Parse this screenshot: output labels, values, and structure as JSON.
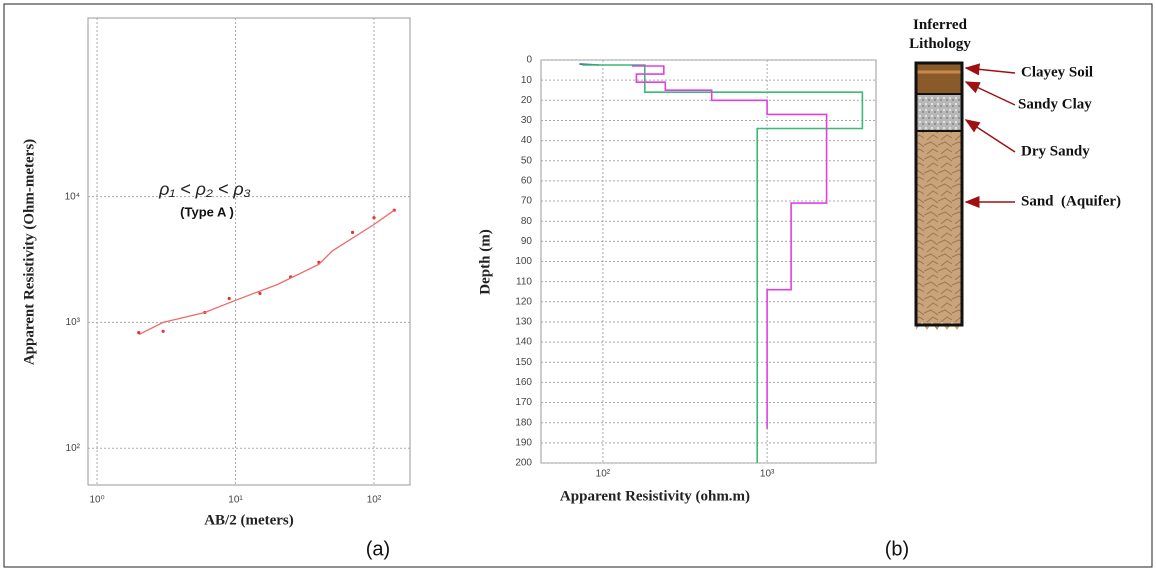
{
  "chart_data": [
    {
      "type": "scatter",
      "x_label": "AB/2 (meters)",
      "y_label": "Apparent Resistivity (Ohm-meters)",
      "annotation": "ρ₁ < ρ₂ < ρ₃",
      "subtitle": "(Type A )",
      "caption": "(a)",
      "log_x": true,
      "log_y": true,
      "grid": true,
      "xlim": [
        0.86,
        182
      ],
      "ylim": [
        51,
        263000
      ],
      "xticks": [
        {
          "value": 1,
          "label": "10⁰"
        },
        {
          "value": 10,
          "label": "10¹"
        },
        {
          "value": 100,
          "label": "10²"
        }
      ],
      "yticks": [
        {
          "value": 100,
          "label": "10²"
        },
        {
          "value": 1000,
          "label": "10³"
        },
        {
          "value": 10000,
          "label": "10⁴"
        }
      ],
      "series": [
        {
          "type": "scatter",
          "color": "#e83030",
          "x": [
            2,
            3,
            6,
            9,
            15,
            25,
            40,
            70,
            100,
            140
          ],
          "values": [
            830,
            850,
            1200,
            1550,
            1700,
            2300,
            3000,
            5200,
            6800,
            7800
          ]
        },
        {
          "type": "line",
          "color": "#f06a6a",
          "x": [
            2,
            3,
            6,
            10,
            20,
            40,
            50,
            100,
            140
          ],
          "values": [
            800,
            1000,
            1200,
            1500,
            2000,
            2900,
            3700,
            6000,
            7800
          ]
        }
      ]
    },
    {
      "type": "line",
      "x_label": "Apparent Resistivity (ohm.m)",
      "y_label": "Depth (m)",
      "caption": "(b)",
      "log_x": true,
      "invert_y": true,
      "grid": true,
      "xlim": [
        42,
        4600
      ],
      "ylim": [
        0,
        200
      ],
      "xticks": [
        {
          "value": 100,
          "label": "10²"
        },
        {
          "value": 1000,
          "label": "10³"
        }
      ],
      "yticks": [
        0,
        10,
        20,
        30,
        40,
        50,
        60,
        70,
        80,
        90,
        100,
        110,
        120,
        130,
        140,
        150,
        160,
        170,
        180,
        190,
        200
      ],
      "series": [
        {
          "color": "#3050a0",
          "x": [
            72,
            95
          ],
          "values": [
            2,
            2.5
          ]
        },
        {
          "color": "#3cb878",
          "x": [
            75,
            180,
            180,
            3800,
            3800,
            870,
            870
          ],
          "values": [
            2.5,
            2.5,
            16,
            16,
            34,
            34,
            200
          ]
        },
        {
          "color": "#e040e0",
          "x": [
            150,
            235,
            235,
            160,
            160,
            240,
            240,
            460,
            460,
            1000,
            1000,
            2300,
            2300,
            1400,
            1400,
            1000,
            1000
          ],
          "values": [
            3,
            3,
            7,
            7,
            11,
            11,
            15,
            15,
            20,
            20,
            27,
            27,
            71,
            71,
            114,
            114,
            183
          ]
        }
      ]
    }
  ],
  "lithology": {
    "title": "Inferred Lithology",
    "layers": [
      "Clayey Soil",
      "Sandy Clay",
      "Dry Sandy",
      "Sand  (Aquifer)"
    ]
  }
}
